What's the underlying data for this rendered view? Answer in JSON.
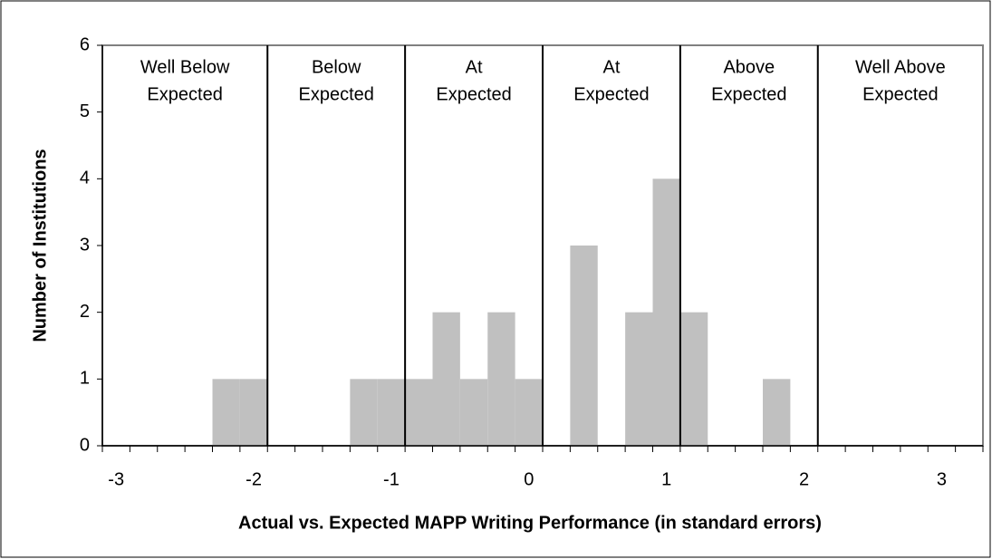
{
  "chart_data": {
    "type": "histogram",
    "xlabel": "Actual vs. Expected MAPP Writing Performance (in standard errors)",
    "ylabel": "Number of Institutions",
    "bins": [
      -3.1,
      -2.9,
      -2.7,
      -2.5,
      -2.3,
      -2.1,
      -1.9,
      -1.7,
      -1.5,
      -1.3,
      -1.1,
      -0.9,
      -0.7,
      -0.5,
      -0.3,
      -0.1,
      0.1,
      0.3,
      0.5,
      0.7,
      0.9,
      1.1,
      1.3,
      1.5,
      1.7,
      1.9,
      2.1,
      2.3,
      2.5,
      2.7,
      2.9,
      3.1,
      3.3
    ],
    "values": [
      0,
      0,
      0,
      0,
      1,
      1,
      0,
      0,
      0,
      1,
      1,
      1,
      2,
      1,
      2,
      1,
      0,
      3,
      0,
      2,
      4,
      2,
      0,
      0,
      1,
      0,
      0,
      0,
      0,
      0,
      0,
      0
    ],
    "color": "#c0c0c0",
    "xlim": [
      -3.1,
      3.3
    ],
    "xticks": [
      -3,
      -2,
      -1,
      0,
      1,
      2,
      3
    ],
    "ylim": [
      0,
      6
    ],
    "yticks": [
      0,
      1,
      2,
      3,
      4,
      5,
      6
    ],
    "dividers": [
      -1.9,
      -0.9,
      0.1,
      1.1,
      2.1
    ],
    "region_labels": [
      [
        "Well Below",
        "Expected"
      ],
      [
        "Below",
        "Expected"
      ],
      [
        "At",
        "Expected"
      ],
      [
        "At",
        "Expected"
      ],
      [
        "Above",
        "Expected"
      ],
      [
        "Well Above",
        "Expected"
      ]
    ]
  }
}
